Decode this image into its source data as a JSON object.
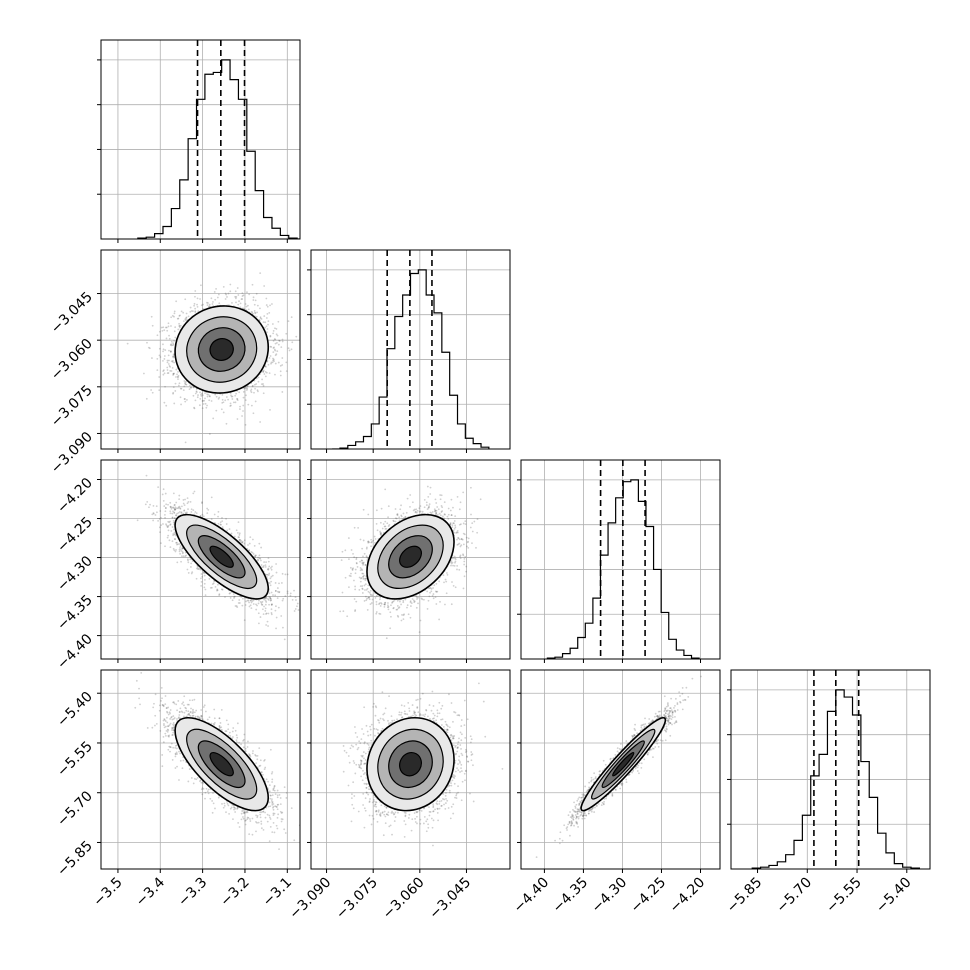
{
  "chart_data": {
    "type": "corner",
    "title": "",
    "grid": true,
    "colors": {
      "hist": "#000000",
      "scatter": "#555555",
      "grid": "#b0b0b0",
      "frame": "#000000"
    },
    "parameters": [
      {
        "axis_range": [
          -3.54,
          -3.07
        ],
        "ticks": [
          -3.5,
          -3.4,
          -3.3,
          -3.2,
          -3.1
        ],
        "tick_labels": [
          "−3.5",
          "−3.4",
          "−3.3",
          "−3.2",
          "−3.1"
        ],
        "center": -3.255,
        "sigma": 0.055,
        "quantiles": [
          -3.312,
          -3.257,
          -3.201
        ],
        "hist_counts": [
          0.005,
          0.01,
          0.03,
          0.07,
          0.17,
          0.33,
          0.56,
          0.78,
          0.92,
          0.93,
          1.0,
          0.89,
          0.78,
          0.49,
          0.27,
          0.12,
          0.06,
          0.02,
          0.005,
          0.0
        ]
      },
      {
        "axis_range": [
          -3.095,
          -3.031
        ],
        "ticks": [
          -3.09,
          -3.075,
          -3.06,
          -3.045
        ],
        "tick_labels": [
          "−3.090",
          "−3.075",
          "−3.060",
          "−3.045"
        ],
        "center": -3.063,
        "sigma": 0.007,
        "quantiles": [
          -3.0705,
          -3.0632,
          -3.0561
        ],
        "hist_counts": [
          0.0,
          0.005,
          0.02,
          0.04,
          0.07,
          0.14,
          0.29,
          0.56,
          0.74,
          0.86,
          0.98,
          1.0,
          0.86,
          0.76,
          0.54,
          0.3,
          0.14,
          0.06,
          0.03,
          0.01
        ]
      },
      {
        "axis_range": [
          -4.43,
          -4.175
        ],
        "ticks": [
          -4.4,
          -4.35,
          -4.3,
          -4.25,
          -4.2
        ],
        "tick_labels": [
          "−4.40",
          "−4.35",
          "−4.30",
          "−4.25",
          "−4.20"
        ],
        "center": -4.299,
        "sigma": 0.027,
        "quantiles": [
          -4.328,
          -4.2995,
          -4.271
        ],
        "hist_counts": [
          0.005,
          0.01,
          0.03,
          0.06,
          0.12,
          0.2,
          0.34,
          0.58,
          0.76,
          0.9,
          0.99,
          1.0,
          0.88,
          0.74,
          0.5,
          0.26,
          0.11,
          0.05,
          0.02,
          0.005
        ]
      },
      {
        "axis_range": [
          -5.93,
          -5.33
        ],
        "ticks": [
          -5.85,
          -5.7,
          -5.55,
          -5.4
        ],
        "tick_labels": [
          "−5.85",
          "−5.70",
          "−5.55",
          "−5.40"
        ],
        "center": -5.614,
        "sigma": 0.07,
        "quantiles": [
          -5.68,
          -5.614,
          -5.545
        ],
        "hist_counts": [
          0.005,
          0.01,
          0.02,
          0.04,
          0.08,
          0.16,
          0.3,
          0.52,
          0.64,
          0.88,
          1.0,
          0.96,
          0.86,
          0.6,
          0.4,
          0.2,
          0.09,
          0.03,
          0.01,
          0.005
        ]
      }
    ],
    "correlations": [
      [
        1.0,
        0.05,
        -0.75,
        -0.72
      ],
      [
        0.05,
        1.0,
        0.35,
        0.1
      ],
      [
        -0.75,
        0.35,
        1.0,
        0.95
      ],
      [
        -0.72,
        0.1,
        0.95,
        1.0
      ]
    ],
    "contour_levels_sigma": [
      0.5,
      1.0,
      1.5,
      2.0
    ],
    "hist_y_ticks": [
      0.25,
      0.5,
      0.75,
      1.0
    ],
    "n_samples": 3500
  }
}
